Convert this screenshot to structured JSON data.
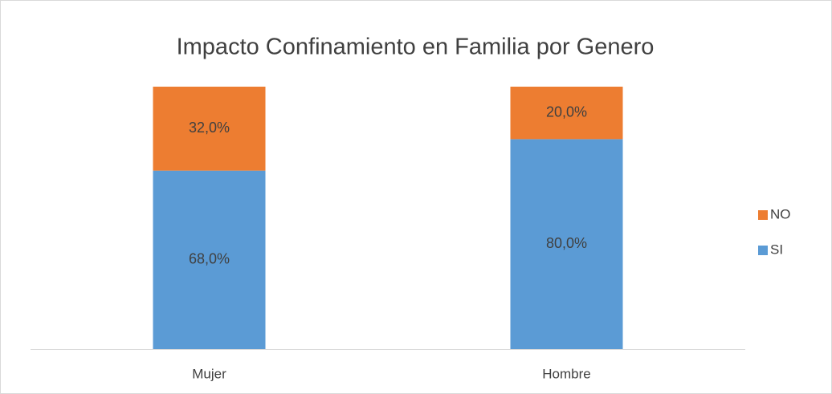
{
  "chart_data": {
    "type": "stacked_bar",
    "title": "Impacto Confinamiento en Familia por Genero",
    "categories": [
      "Mujer",
      "Hombre"
    ],
    "series": [
      {
        "name": "SI",
        "color": "#5b9bd5",
        "values": [
          68,
          80
        ],
        "value_labels": [
          "68,0%",
          "80,0%"
        ]
      },
      {
        "name": "NO",
        "color": "#ed7d31",
        "values": [
          32,
          20
        ],
        "value_labels": [
          "32,0%",
          "20,0%"
        ]
      }
    ],
    "legend": "right"
  }
}
